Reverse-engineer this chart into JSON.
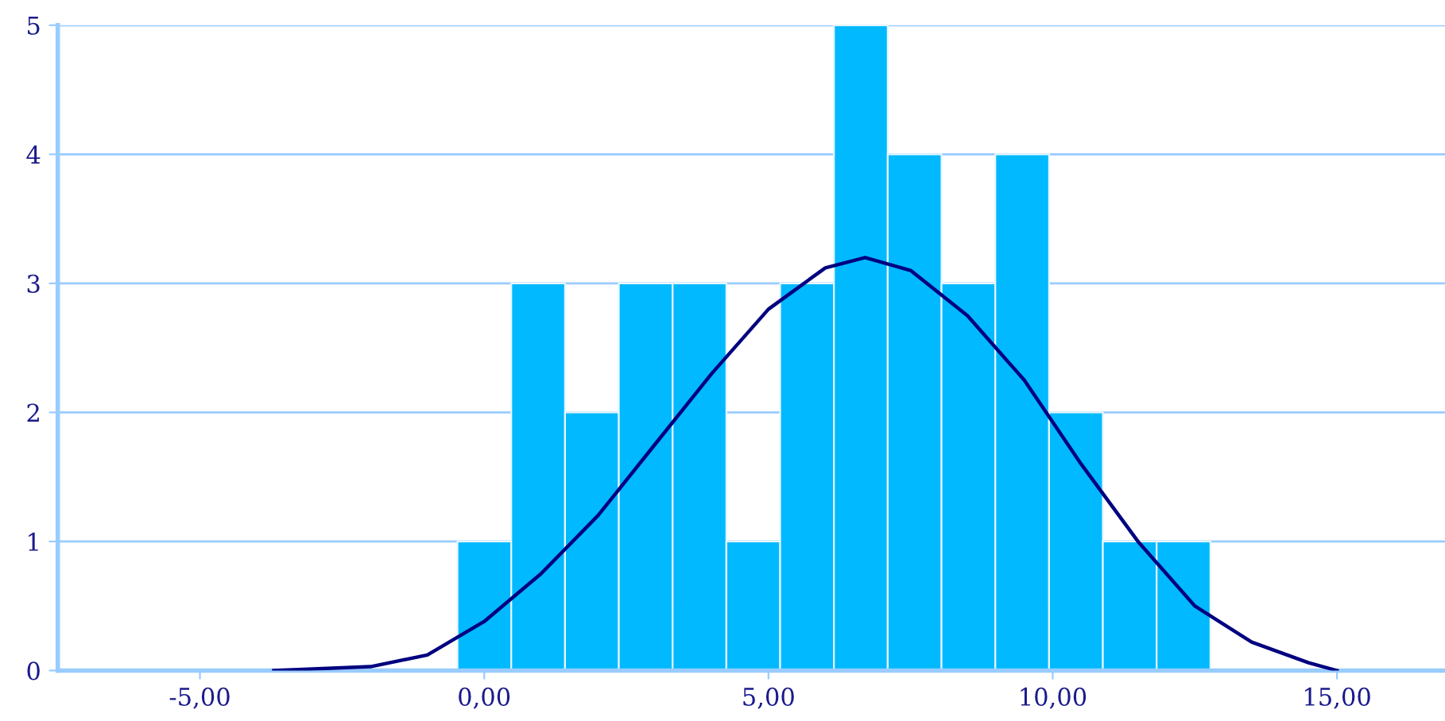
{
  "chart_data": {
    "type": "histogram",
    "series": [
      {
        "type": "histogram",
        "color": "#00b9ff",
        "bins": [
          -0.47,
          0.476,
          1.422,
          2.368,
          3.314,
          4.26,
          5.206,
          6.152,
          7.098,
          8.044,
          8.99,
          9.936,
          10.882,
          11.828,
          12.774
        ],
        "values": [
          1,
          3,
          2,
          3,
          3,
          1,
          3,
          5,
          4,
          3,
          4,
          2,
          1,
          1
        ]
      },
      {
        "type": "line",
        "color": "#000080",
        "x": [
          -3.7,
          -2,
          -1,
          0,
          1,
          2,
          3,
          4,
          5,
          6,
          6.7,
          7.5,
          8.5,
          9.5,
          10.5,
          11.5,
          12.5,
          13.5,
          14.5,
          15
        ],
        "values": [
          0.0,
          0.03,
          0.12,
          0.38,
          0.75,
          1.2,
          1.75,
          2.3,
          2.8,
          3.12,
          3.2,
          3.1,
          2.75,
          2.25,
          1.6,
          1.0,
          0.5,
          0.22,
          0.06,
          0.0
        ]
      }
    ],
    "xlim": [
      -7.5,
      16.9
    ],
    "ylim": [
      0,
      5
    ],
    "xticks": [
      {
        "value": -5,
        "label": "-5,00"
      },
      {
        "value": 0,
        "label": "0,00"
      },
      {
        "value": 5,
        "label": "5,00"
      },
      {
        "value": 10,
        "label": "10,00"
      },
      {
        "value": 15,
        "label": "15,00"
      }
    ],
    "yticks": [
      0,
      1,
      2,
      3,
      4,
      5
    ],
    "grid": "y",
    "marker": "none",
    "line_style": "solid"
  }
}
